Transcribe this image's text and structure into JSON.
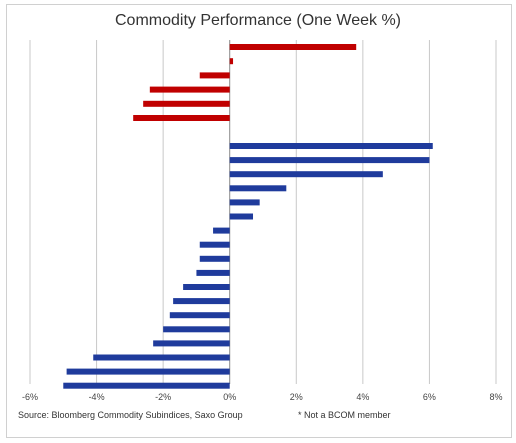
{
  "chart_data": {
    "type": "bar",
    "orientation": "horizontal",
    "title": "Commodity Performance (One Week %)",
    "xlabel": "",
    "ylabel": "",
    "xlim": [
      -6,
      8
    ],
    "x_ticks": [
      -6,
      -4,
      -2,
      0,
      2,
      4,
      6,
      8
    ],
    "x_tick_format": "percent",
    "grid": "vertical",
    "legend": "none",
    "colors": {
      "group_top": "#c00000",
      "group_bottom": "#1f3b9c"
    },
    "series": [
      {
        "group": "top",
        "values": [
          3.8,
          0.1,
          -0.9,
          -2.4,
          -2.6,
          -2.9
        ]
      },
      {
        "group": "bottom",
        "values": [
          6.1,
          6.0,
          4.6,
          1.7,
          0.9,
          0.7,
          -0.5,
          -0.9,
          -0.9,
          -1.0,
          -1.4,
          -1.7,
          -1.8,
          -2.0,
          -2.3,
          -4.1,
          -4.9,
          -5.0
        ]
      }
    ]
  },
  "source": "Source: Bloomberg Commodity Subindices, Saxo Group",
  "footnote": "* Not a BCOM member"
}
